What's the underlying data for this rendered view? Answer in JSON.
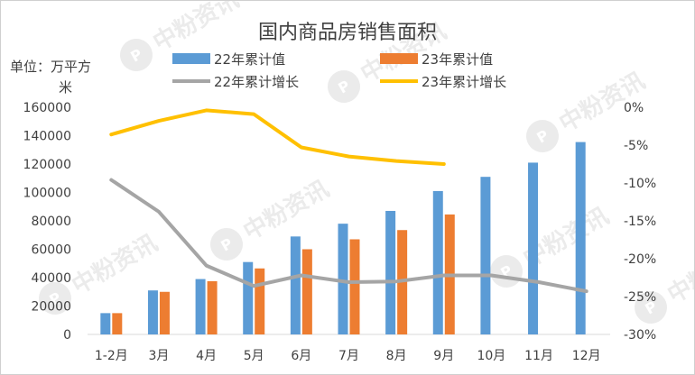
{
  "chart_data": {
    "type": "bar",
    "title": "国内商品房销售面积",
    "unit_label_line1": "单位：万平方",
    "unit_label_line2": "米",
    "categories": [
      "1-2月",
      "3月",
      "4月",
      "5月",
      "6月",
      "7月",
      "8月",
      "9月",
      "10月",
      "11月",
      "12月"
    ],
    "y_left": {
      "min": 0,
      "max": 160000,
      "step": 20000,
      "ticks": [
        "0",
        "20000",
        "40000",
        "60000",
        "80000",
        "100000",
        "120000",
        "140000",
        "160000"
      ]
    },
    "y_right": {
      "min": -30,
      "max": 0,
      "step": 5,
      "ticks": [
        "-30%",
        "-25%",
        "-20%",
        "-15%",
        "-10%",
        "-5%",
        "0%"
      ]
    },
    "grid": false,
    "legend_position": "top",
    "series": [
      {
        "name": "22年累计值",
        "kind": "bar",
        "axis": "left",
        "color": "#5b9bd5",
        "values": [
          15000,
          31000,
          39000,
          51000,
          69000,
          78000,
          87000,
          101000,
          111000,
          121000,
          135500
        ]
      },
      {
        "name": "23年累计值",
        "kind": "bar",
        "axis": "left",
        "color": "#ed7d31",
        "values": [
          15000,
          30000,
          37500,
          46500,
          60000,
          67000,
          73500,
          84500,
          null,
          null,
          null
        ]
      },
      {
        "name": "22年累计增长",
        "kind": "line",
        "axis": "right",
        "color": "#a5a5a5",
        "values": [
          -9.6,
          -13.8,
          -20.9,
          -23.6,
          -22.2,
          -23.1,
          -23.0,
          -22.2,
          -22.2,
          -23.1,
          -24.3
        ]
      },
      {
        "name": "23年累计增长",
        "kind": "line",
        "axis": "right",
        "color": "#ffc000",
        "values": [
          -3.6,
          -1.8,
          -0.4,
          -0.9,
          -5.3,
          -6.5,
          -7.1,
          -7.5,
          null,
          null,
          null
        ]
      }
    ]
  },
  "watermark": {
    "text": "中粉资讯",
    "color": "#c8c8c8"
  }
}
